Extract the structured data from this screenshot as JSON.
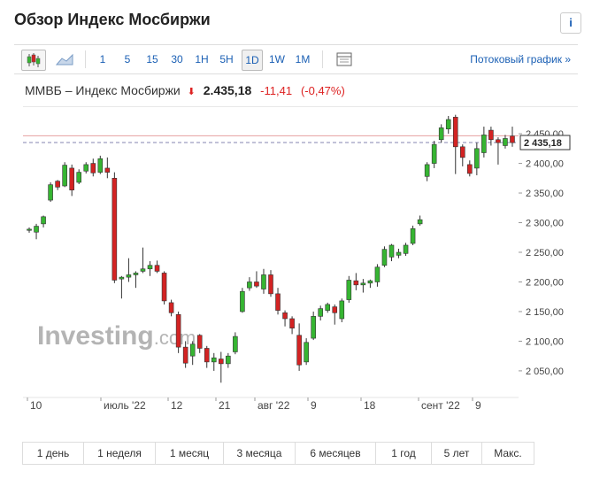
{
  "page": {
    "title": "Обзор Индекс Мосбиржи",
    "info_label": "i"
  },
  "toolbar": {
    "intervals": [
      "1",
      "5",
      "15",
      "30",
      "1H",
      "5H",
      "1D",
      "1W",
      "1M"
    ],
    "selected_interval": "1D",
    "icons": [
      "candlestick-icon",
      "area-chart-icon",
      "chart-settings-icon"
    ],
    "stream_link": "Потоковый график »"
  },
  "quote": {
    "name": "ММВБ – Индекс Мосбиржи",
    "price": "2.435,18",
    "change": "-11,41",
    "change_pct": "(-0,47%)"
  },
  "chart_data": {
    "type": "candlestick",
    "watermark": "Investing.com",
    "x_tick_labels": [
      "10",
      "июль '22",
      "12",
      "21",
      "авг '22",
      "9",
      "18",
      "сент '22",
      "9"
    ],
    "y_tick_labels": [
      "2 450,00",
      "2 400,00",
      "2 350,00",
      "2 300,00",
      "2 250,00",
      "2 200,00",
      "2 150,00",
      "2 100,00",
      "2 050,00"
    ],
    "ylim": [
      2020,
      2480
    ],
    "last_price_label": "2 435,18",
    "last_price": 2435.18,
    "prev_close": 2446.6,
    "colors": {
      "up": "#36b532",
      "down": "#d32323",
      "last_line": "#8585b0",
      "prev_line": "#e6a0a0"
    },
    "candles": [
      {
        "o": 2287,
        "h": 2292,
        "l": 2283,
        "c": 2289
      },
      {
        "o": 2284,
        "h": 2298,
        "l": 2272,
        "c": 2294
      },
      {
        "o": 2298,
        "h": 2312,
        "l": 2292,
        "c": 2310
      },
      {
        "o": 2338,
        "h": 2368,
        "l": 2335,
        "c": 2364
      },
      {
        "o": 2370,
        "h": 2372,
        "l": 2355,
        "c": 2360
      },
      {
        "o": 2362,
        "h": 2402,
        "l": 2360,
        "c": 2397
      },
      {
        "o": 2392,
        "h": 2398,
        "l": 2345,
        "c": 2355
      },
      {
        "o": 2368,
        "h": 2390,
        "l": 2365,
        "c": 2385
      },
      {
        "o": 2387,
        "h": 2402,
        "l": 2383,
        "c": 2398
      },
      {
        "o": 2400,
        "h": 2408,
        "l": 2378,
        "c": 2384
      },
      {
        "o": 2385,
        "h": 2413,
        "l": 2382,
        "c": 2408
      },
      {
        "o": 2392,
        "h": 2410,
        "l": 2375,
        "c": 2385
      },
      {
        "o": 2375,
        "h": 2385,
        "l": 2198,
        "c": 2203
      },
      {
        "o": 2205,
        "h": 2210,
        "l": 2172,
        "c": 2208
      },
      {
        "o": 2208,
        "h": 2240,
        "l": 2200,
        "c": 2212
      },
      {
        "o": 2212,
        "h": 2218,
        "l": 2190,
        "c": 2215
      },
      {
        "o": 2218,
        "h": 2258,
        "l": 2215,
        "c": 2222
      },
      {
        "o": 2222,
        "h": 2235,
        "l": 2210,
        "c": 2228
      },
      {
        "o": 2228,
        "h": 2236,
        "l": 2215,
        "c": 2218
      },
      {
        "o": 2215,
        "h": 2218,
        "l": 2162,
        "c": 2168
      },
      {
        "o": 2165,
        "h": 2170,
        "l": 2142,
        "c": 2148
      },
      {
        "o": 2145,
        "h": 2150,
        "l": 2080,
        "c": 2090
      },
      {
        "o": 2090,
        "h": 2100,
        "l": 2055,
        "c": 2063
      },
      {
        "o": 2075,
        "h": 2100,
        "l": 2060,
        "c": 2095
      },
      {
        "o": 2110,
        "h": 2112,
        "l": 2080,
        "c": 2088
      },
      {
        "o": 2088,
        "h": 2092,
        "l": 2055,
        "c": 2065
      },
      {
        "o": 2065,
        "h": 2080,
        "l": 2050,
        "c": 2072
      },
      {
        "o": 2070,
        "h": 2082,
        "l": 2030,
        "c": 2062
      },
      {
        "o": 2062,
        "h": 2080,
        "l": 2055,
        "c": 2075
      },
      {
        "o": 2082,
        "h": 2115,
        "l": 2078,
        "c": 2108
      },
      {
        "o": 2150,
        "h": 2190,
        "l": 2148,
        "c": 2184
      },
      {
        "o": 2190,
        "h": 2208,
        "l": 2185,
        "c": 2200
      },
      {
        "o": 2200,
        "h": 2218,
        "l": 2190,
        "c": 2193
      },
      {
        "o": 2188,
        "h": 2222,
        "l": 2180,
        "c": 2212
      },
      {
        "o": 2212,
        "h": 2220,
        "l": 2175,
        "c": 2180
      },
      {
        "o": 2180,
        "h": 2190,
        "l": 2145,
        "c": 2152
      },
      {
        "o": 2148,
        "h": 2152,
        "l": 2125,
        "c": 2138
      },
      {
        "o": 2138,
        "h": 2142,
        "l": 2112,
        "c": 2122
      },
      {
        "o": 2110,
        "h": 2130,
        "l": 2050,
        "c": 2060
      },
      {
        "o": 2065,
        "h": 2105,
        "l": 2060,
        "c": 2098
      },
      {
        "o": 2105,
        "h": 2150,
        "l": 2102,
        "c": 2142
      },
      {
        "o": 2142,
        "h": 2160,
        "l": 2135,
        "c": 2155
      },
      {
        "o": 2152,
        "h": 2165,
        "l": 2148,
        "c": 2162
      },
      {
        "o": 2158,
        "h": 2162,
        "l": 2128,
        "c": 2148
      },
      {
        "o": 2138,
        "h": 2172,
        "l": 2132,
        "c": 2168
      },
      {
        "o": 2170,
        "h": 2210,
        "l": 2165,
        "c": 2203
      },
      {
        "o": 2202,
        "h": 2215,
        "l": 2186,
        "c": 2195
      },
      {
        "o": 2195,
        "h": 2205,
        "l": 2182,
        "c": 2198
      },
      {
        "o": 2198,
        "h": 2204,
        "l": 2190,
        "c": 2202
      },
      {
        "o": 2200,
        "h": 2230,
        "l": 2192,
        "c": 2225
      },
      {
        "o": 2228,
        "h": 2260,
        "l": 2225,
        "c": 2255
      },
      {
        "o": 2242,
        "h": 2264,
        "l": 2235,
        "c": 2262
      },
      {
        "o": 2245,
        "h": 2256,
        "l": 2240,
        "c": 2250
      },
      {
        "o": 2248,
        "h": 2266,
        "l": 2244,
        "c": 2262
      },
      {
        "o": 2265,
        "h": 2295,
        "l": 2262,
        "c": 2290
      },
      {
        "o": 2298,
        "h": 2312,
        "l": 2295,
        "c": 2305
      },
      {
        "o": 2378,
        "h": 2402,
        "l": 2370,
        "c": 2398
      },
      {
        "o": 2400,
        "h": 2438,
        "l": 2392,
        "c": 2432
      },
      {
        "o": 2440,
        "h": 2466,
        "l": 2435,
        "c": 2460
      },
      {
        "o": 2458,
        "h": 2480,
        "l": 2450,
        "c": 2474
      },
      {
        "o": 2478,
        "h": 2482,
        "l": 2382,
        "c": 2428
      },
      {
        "o": 2428,
        "h": 2432,
        "l": 2395,
        "c": 2410
      },
      {
        "o": 2398,
        "h": 2405,
        "l": 2378,
        "c": 2383
      },
      {
        "o": 2392,
        "h": 2435,
        "l": 2380,
        "c": 2425
      },
      {
        "o": 2418,
        "h": 2462,
        "l": 2410,
        "c": 2448
      },
      {
        "o": 2456,
        "h": 2462,
        "l": 2430,
        "c": 2440
      },
      {
        "o": 2440,
        "h": 2444,
        "l": 2398,
        "c": 2435
      },
      {
        "o": 2430,
        "h": 2448,
        "l": 2425,
        "c": 2442
      },
      {
        "o": 2446,
        "h": 2462,
        "l": 2428,
        "c": 2435
      }
    ]
  },
  "periods": [
    "1 день",
    "1 неделя",
    "1 месяц",
    "3 месяца",
    "6 месяцев",
    "1 год",
    "5 лет",
    "Макс."
  ]
}
